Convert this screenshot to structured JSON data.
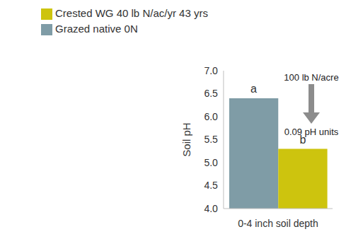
{
  "chart_data": {
    "type": "bar",
    "y_label": "Soil pH",
    "categories": [
      "0-4 inch soil depth"
    ],
    "series": [
      {
        "name": "Grazed native 0N",
        "color": "#7f9ca6",
        "values": [
          6.4
        ],
        "letter": "a"
      },
      {
        "name": "Crested WG 40 lb N/ac/yr 43 yrs",
        "color": "#cdc40e",
        "values": [
          5.3
        ],
        "letter": "b"
      }
    ],
    "ylim": [
      4,
      7
    ],
    "yticks": [
      {
        "value": 4,
        "label": "4.0"
      },
      {
        "value": 4.5,
        "label": "4.5"
      },
      {
        "value": 5,
        "label": "5.0"
      },
      {
        "value": 5.5,
        "label": "5.5"
      },
      {
        "value": 6,
        "label": "6.0"
      },
      {
        "value": 6.5,
        "label": "6.5"
      },
      {
        "value": 7,
        "label": "7.0"
      }
    ],
    "grid": false,
    "legend": "upper left",
    "annotations": [
      "100 lb N/acre",
      "0.09 pH units"
    ]
  }
}
